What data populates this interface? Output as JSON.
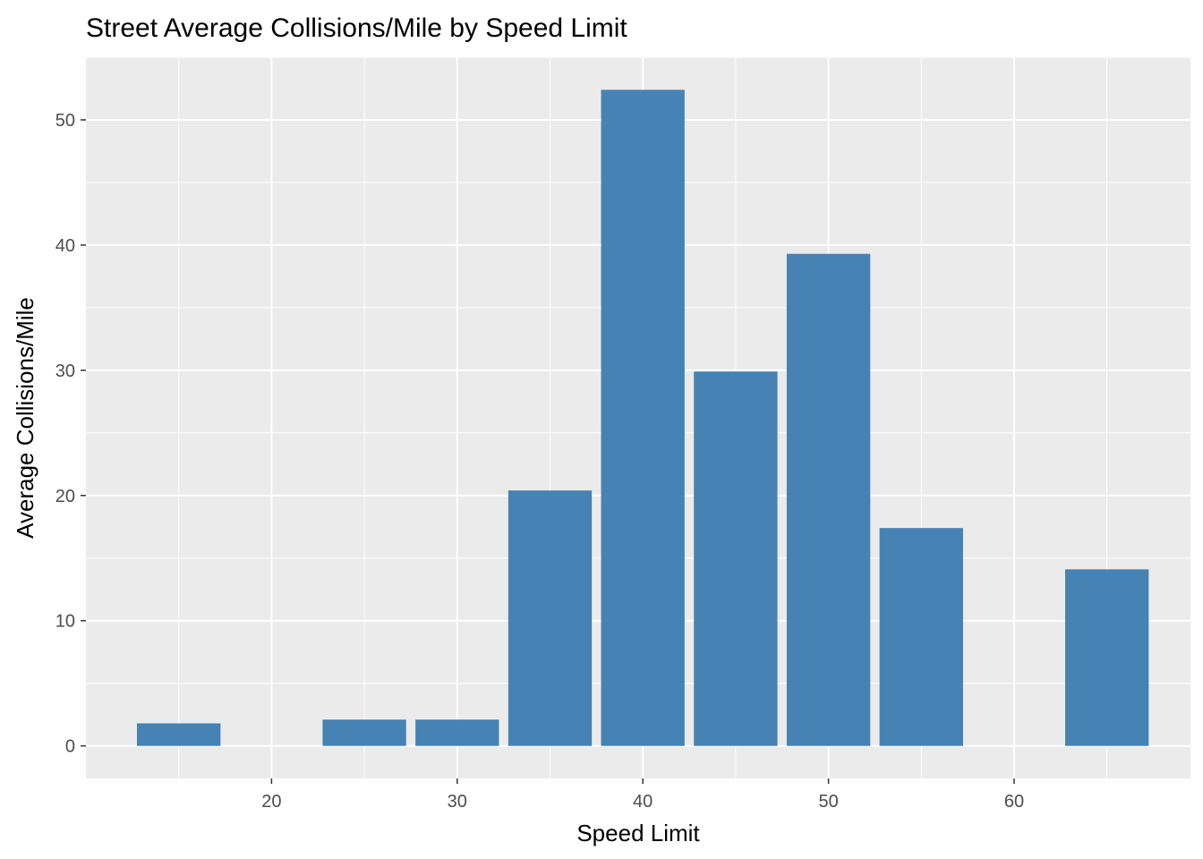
{
  "chart_data": {
    "type": "bar",
    "title": "Street Average Collisions/Mile by Speed Limit",
    "xlabel": "Speed Limit",
    "ylabel": "Average Collisions/Mile",
    "x": [
      15,
      25,
      30,
      35,
      40,
      45,
      50,
      55,
      65
    ],
    "values": [
      1.8,
      2.1,
      2.1,
      20.4,
      52.4,
      29.9,
      39.3,
      17.4,
      14.1
    ],
    "bar_width": 4.5,
    "xlim": [
      10.0,
      69.5
    ],
    "ylim": [
      -2.6,
      55.0
    ],
    "x_ticks": [
      20,
      30,
      40,
      50,
      60
    ],
    "y_ticks": [
      0,
      10,
      20,
      30,
      40,
      50
    ],
    "x_tick_labels": [
      "20",
      "30",
      "40",
      "50",
      "60"
    ],
    "y_tick_labels": [
      "0",
      "10",
      "20",
      "30",
      "40",
      "50"
    ],
    "grid": true,
    "legend": "none",
    "bar_color": "#4682b4",
    "panel_color": "#ebebeb",
    "grid_color": "#ffffff"
  }
}
